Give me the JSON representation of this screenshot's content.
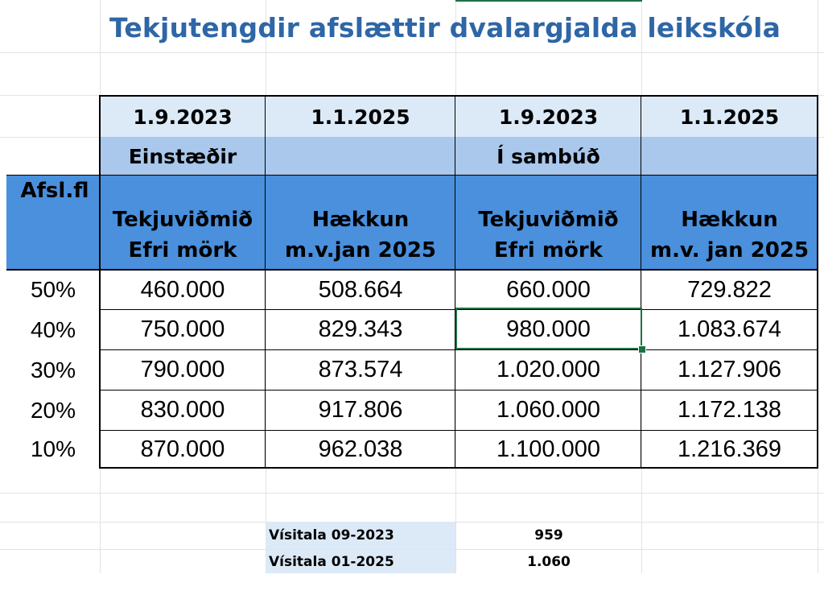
{
  "title": "Tekjutengdir afslættir dvalargjalda leikskóla",
  "dates": [
    "1.9.2023",
    "1.1.2025",
    "1.9.2023",
    "1.1.2025"
  ],
  "groups": {
    "single": "Einstæðir",
    "couple": "Í sambúð"
  },
  "columns": {
    "discount_class": "Afsl.fl",
    "c1": {
      "line1": "Tekjuviðmið",
      "line2": "Efri mörk"
    },
    "c2": {
      "line1": "Hækkun",
      "line2": "m.v.jan 2025"
    },
    "c3": {
      "line1": "Tekjuviðmið",
      "line2": "Efri mörk"
    },
    "c4": {
      "line1": "Hækkun",
      "line2": "m.v. jan 2025"
    }
  },
  "rows": [
    {
      "pct": "50%",
      "v1": "460.000",
      "v2": "508.664",
      "v3": "660.000",
      "v4": "729.822"
    },
    {
      "pct": "40%",
      "v1": "750.000",
      "v2": "829.343",
      "v3": "980.000",
      "v4": "1.083.674"
    },
    {
      "pct": "30%",
      "v1": "790.000",
      "v2": "873.574",
      "v3": "1.020.000",
      "v4": "1.127.906"
    },
    {
      "pct": "20%",
      "v1": "830.000",
      "v2": "917.806",
      "v3": "1.060.000",
      "v4": "1.172.138"
    },
    {
      "pct": "10%",
      "v1": "870.000",
      "v2": "962.038",
      "v3": "1.100.000",
      "v4": "1.216.369"
    }
  ],
  "index": [
    {
      "label": "Vísitala 09-2023",
      "value": "959"
    },
    {
      "label": "Vísitala 01-2025",
      "value": "1.060"
    }
  ],
  "colors": {
    "title": "#2e66a6",
    "date_header": "#dce9f7",
    "group_header": "#a9c8ec",
    "column_header": "#4a90dd",
    "selection": "#1e7145"
  }
}
